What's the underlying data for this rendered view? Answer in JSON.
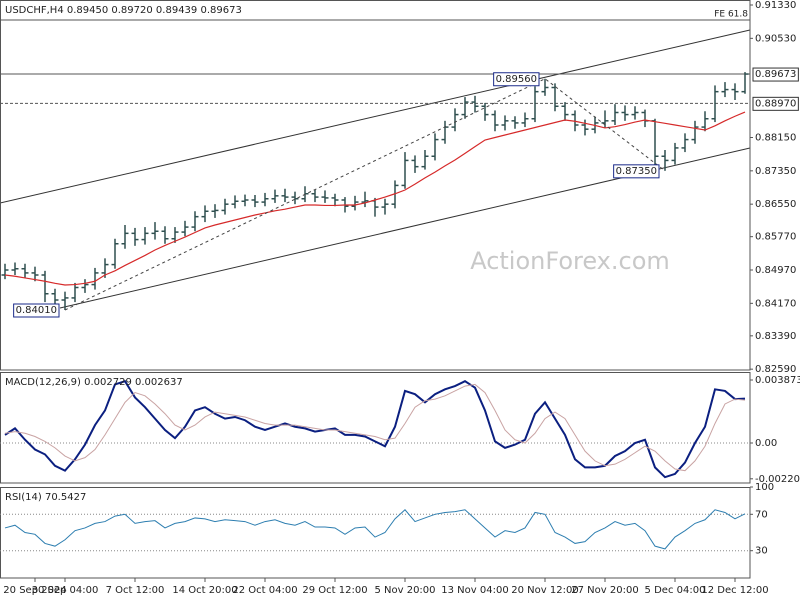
{
  "chart_data": [
    {
      "type": "ohlc",
      "title": "USDCHF,H4  0.89450 0.89720 0.89439 0.89673",
      "watermark": "ActionForex.com",
      "color": "#2f4f4f",
      "categories": [
        null,
        null,
        null,
        "20 Sep 2024",
        null,
        null,
        "30 Sep 04:00",
        null,
        null,
        null,
        null,
        null,
        null,
        "7 Oct 12:00",
        null,
        null,
        null,
        null,
        null,
        null,
        "14 Oct 20:00",
        null,
        null,
        null,
        null,
        null,
        "22 Oct 04:00",
        null,
        null,
        null,
        null,
        null,
        null,
        "29 Oct 12:00",
        null,
        null,
        null,
        null,
        null,
        null,
        "5 Nov 20:00",
        null,
        null,
        null,
        null,
        null,
        null,
        "13 Nov 04:00",
        null,
        null,
        null,
        null,
        null,
        null,
        "20 Nov 12:00",
        null,
        null,
        null,
        null,
        null,
        "27 Nov 20:00",
        null,
        null,
        null,
        null,
        null,
        null,
        "5 Dec 04:00",
        null,
        null,
        null,
        null,
        null,
        "12 Dec 12:00",
        null
      ],
      "open": [
        0.8485,
        0.8497,
        0.85,
        0.849,
        0.8485,
        0.844,
        0.8425,
        0.843,
        0.8455,
        0.8462,
        0.849,
        0.851,
        0.856,
        0.8585,
        0.857,
        0.8585,
        0.859,
        0.8572,
        0.8588,
        0.86,
        0.8625,
        0.8638,
        0.864,
        0.8655,
        0.8662,
        0.8665,
        0.866,
        0.8668,
        0.8675,
        0.8672,
        0.8668,
        0.868,
        0.8672,
        0.867,
        0.8665,
        0.865,
        0.866,
        0.8663,
        0.8648,
        0.8655,
        0.87,
        0.876,
        0.8745,
        0.877,
        0.881,
        0.884,
        0.887,
        0.89,
        0.889,
        0.887,
        0.8845,
        0.8855,
        0.885,
        0.886,
        0.8925,
        0.8935,
        0.889,
        0.887,
        0.8845,
        0.8835,
        0.885,
        0.8855,
        0.8875,
        0.887,
        0.8875,
        0.8855,
        0.877,
        0.876,
        0.879,
        0.881,
        0.884,
        0.886,
        0.8925,
        0.893,
        0.8925
      ],
      "high": [
        0.8512,
        0.8515,
        0.8512,
        0.8505,
        0.8495,
        0.8452,
        0.8445,
        0.8466,
        0.8475,
        0.8502,
        0.8525,
        0.8572,
        0.8605,
        0.8598,
        0.86,
        0.8612,
        0.8602,
        0.86,
        0.8615,
        0.8638,
        0.8652,
        0.8655,
        0.8668,
        0.8676,
        0.8678,
        0.8677,
        0.8682,
        0.869,
        0.8692,
        0.8685,
        0.8698,
        0.869,
        0.8688,
        0.868,
        0.8672,
        0.8675,
        0.8685,
        0.867,
        0.8668,
        0.8712,
        0.878,
        0.8772,
        0.8785,
        0.8825,
        0.8855,
        0.8885,
        0.8912,
        0.8915,
        0.8898,
        0.888,
        0.8868,
        0.8866,
        0.8875,
        0.8938,
        0.8956,
        0.8945,
        0.89,
        0.888,
        0.8858,
        0.8865,
        0.888,
        0.8895,
        0.8892,
        0.889,
        0.8882,
        0.886,
        0.8785,
        0.8802,
        0.8825,
        0.8855,
        0.8878,
        0.894,
        0.8948,
        0.8945,
        0.8972
      ],
      "low": [
        0.8475,
        0.8485,
        0.8478,
        0.847,
        0.842,
        0.8412,
        0.8401,
        0.842,
        0.8442,
        0.845,
        0.8478,
        0.85,
        0.8548,
        0.8555,
        0.8558,
        0.857,
        0.856,
        0.8562,
        0.8578,
        0.859,
        0.8612,
        0.8622,
        0.863,
        0.8645,
        0.865,
        0.8648,
        0.865,
        0.8658,
        0.866,
        0.8655,
        0.866,
        0.866,
        0.8658,
        0.865,
        0.8635,
        0.864,
        0.8648,
        0.8625,
        0.863,
        0.8645,
        0.8692,
        0.873,
        0.8738,
        0.876,
        0.88,
        0.883,
        0.886,
        0.8875,
        0.8855,
        0.883,
        0.8832,
        0.8836,
        0.884,
        0.8852,
        0.8915,
        0.8878,
        0.8855,
        0.883,
        0.882,
        0.8825,
        0.8838,
        0.8845,
        0.8855,
        0.8858,
        0.884,
        0.875,
        0.8735,
        0.875,
        0.878,
        0.88,
        0.883,
        0.8852,
        0.8912,
        0.8905,
        0.892
      ],
      "close": [
        0.8497,
        0.85,
        0.849,
        0.8485,
        0.844,
        0.8425,
        0.843,
        0.8455,
        0.8462,
        0.849,
        0.851,
        0.856,
        0.8585,
        0.857,
        0.8585,
        0.859,
        0.8572,
        0.8588,
        0.86,
        0.8625,
        0.8638,
        0.864,
        0.8655,
        0.8662,
        0.8665,
        0.866,
        0.8668,
        0.8675,
        0.8672,
        0.8668,
        0.868,
        0.8672,
        0.867,
        0.8665,
        0.865,
        0.866,
        0.8663,
        0.8648,
        0.8655,
        0.87,
        0.876,
        0.8745,
        0.877,
        0.881,
        0.884,
        0.887,
        0.89,
        0.889,
        0.887,
        0.8845,
        0.8855,
        0.885,
        0.886,
        0.8925,
        0.8935,
        0.889,
        0.887,
        0.8845,
        0.8835,
        0.885,
        0.8855,
        0.8875,
        0.887,
        0.8875,
        0.8855,
        0.877,
        0.876,
        0.879,
        0.881,
        0.884,
        0.886,
        0.8925,
        0.893,
        0.8925,
        0.89673
      ],
      "overlays": [
        {
          "color": "#d62a2a",
          "values": [
            0.8485,
            0.8482,
            0.8478,
            0.8474,
            0.847,
            0.8465,
            0.8461,
            0.8462,
            0.8465,
            0.847,
            0.8485,
            0.8495,
            0.8508,
            0.852,
            0.8532,
            0.8545,
            0.8556,
            0.8566,
            0.8576,
            0.8587,
            0.8598,
            0.8605,
            0.8611,
            0.8617,
            0.8623,
            0.8629,
            0.8634,
            0.8639,
            0.8643,
            0.8648,
            0.8653,
            0.8653,
            0.8652,
            0.8652,
            0.8653,
            0.8653,
            0.8658,
            0.8665,
            0.8672,
            0.868,
            0.8689,
            0.8703,
            0.8718,
            0.8732,
            0.8747,
            0.8761,
            0.8777,
            0.8793,
            0.8809,
            0.8815,
            0.8821,
            0.8827,
            0.8833,
            0.8839,
            0.8845,
            0.8851,
            0.8857,
            0.8854,
            0.8849,
            0.8844,
            0.8838,
            0.8841,
            0.8846,
            0.8852,
            0.8857,
            0.8853,
            0.8849,
            0.8845,
            0.8841,
            0.8837,
            0.8833,
            0.8843,
            0.8855,
            0.8866,
            0.8876
          ]
        }
      ],
      "ylim": [
        0.8257,
        0.9145
      ],
      "yticks": [
        {
          "value": 0.9133,
          "label": "0.91330"
        },
        {
          "value": 0.9053,
          "label": "0.90530"
        },
        {
          "value": 0.8815,
          "label": "0.88150"
        },
        {
          "value": 0.8735,
          "label": "0.87350"
        },
        {
          "value": 0.8655,
          "label": "0.86550"
        },
        {
          "value": 0.8577,
          "label": "0.85770"
        },
        {
          "value": 0.8497,
          "label": "0.84970"
        },
        {
          "value": 0.8417,
          "label": "0.84170"
        },
        {
          "value": 0.8339,
          "label": "0.83390"
        },
        {
          "value": 0.8259,
          "label": "0.82590"
        }
      ],
      "price_lines": [
        {
          "value": 0.89673,
          "label": "0.89673",
          "style": "solid"
        },
        {
          "value": 0.8897,
          "label": "0.88970",
          "style": "dashed"
        }
      ],
      "pivots": [
        {
          "value": 0.8401,
          "label": "0.84010"
        },
        {
          "value": 0.8956,
          "label": "0.89560"
        },
        {
          "value": 0.8735,
          "label": "0.87350"
        }
      ],
      "projection": {
        "value": 0.9097,
        "label": "FE 61.8"
      }
    },
    {
      "type": "line",
      "title": "MACD(12,26,9) 0.002729 0.002637",
      "grid": "zero",
      "series": [
        {
          "color": "#0b1f80",
          "width": 2,
          "values": [
            0.0005,
            0.0009,
            0.0002,
            -0.0004,
            -0.0007,
            -0.0014,
            -0.0017,
            -0.001,
            -0.0001,
            0.0011,
            0.002,
            0.0036,
            0.0038,
            0.0028,
            0.0022,
            0.0015,
            0.0008,
            0.0003,
            0.001,
            0.002,
            0.0022,
            0.0018,
            0.0015,
            0.0016,
            0.0014,
            0.001,
            0.0008,
            0.001,
            0.0012,
            0.001,
            0.0009,
            0.0007,
            0.0008,
            0.0009,
            0.0005,
            0.0005,
            0.0004,
            0.0001,
            -0.0002,
            0.001,
            0.0032,
            0.003,
            0.0025,
            0.003,
            0.0033,
            0.0035,
            0.0038,
            0.0034,
            0.002,
            0.0001,
            -0.0003,
            -0.0001,
            0.0002,
            0.0018,
            0.0025,
            0.0015,
            0.0005,
            -0.001,
            -0.0015,
            -0.0015,
            -0.0014,
            -0.0008,
            -0.0005,
            0.0,
            0.0002,
            -0.0015,
            -0.0021,
            -0.0019,
            -0.0012,
            0.0,
            0.001,
            0.0033,
            0.0032,
            0.0027,
            0.002729
          ]
        },
        {
          "color": "#c9a3a3",
          "width": 1,
          "values": [
            0.0006,
            0.0007,
            0.0006,
            0.0004,
            0.0001,
            -0.0003,
            -0.0008,
            -0.0011,
            -0.0009,
            -0.0004,
            0.0005,
            0.0015,
            0.0025,
            0.0031,
            0.0029,
            0.0024,
            0.0018,
            0.0011,
            0.0008,
            0.0011,
            0.0016,
            0.0019,
            0.0018,
            0.0017,
            0.0016,
            0.0014,
            0.0012,
            0.0011,
            0.0011,
            0.0011,
            0.001,
            0.0009,
            0.0008,
            0.0008,
            0.0007,
            0.0006,
            0.0005,
            0.0004,
            0.0002,
            0.0003,
            0.0012,
            0.0022,
            0.0026,
            0.0027,
            0.0029,
            0.0032,
            0.0035,
            0.0036,
            0.0031,
            0.002,
            0.0008,
            0.0002,
            0.0,
            0.0006,
            0.0015,
            0.0019,
            0.0015,
            0.0005,
            -0.0005,
            -0.0011,
            -0.0014,
            -0.0013,
            -0.001,
            -0.0006,
            -0.0002,
            -0.0005,
            -0.0011,
            -0.0016,
            -0.0017,
            -0.0011,
            -0.0002,
            0.0012,
            0.0024,
            0.0027,
            0.002637
          ]
        }
      ],
      "ylim": [
        -0.002459,
        0.004365
      ],
      "yticks": [
        0.003873,
        {
          "value": 0,
          "label": "0.00"
        },
        -0.002201
      ]
    },
    {
      "type": "line",
      "title": "RSI(14) 70.5427",
      "grid": "inner",
      "series": [
        {
          "color": "#2d7eb0",
          "width": 1,
          "values": [
            55,
            58,
            50,
            48,
            38,
            35,
            42,
            52,
            55,
            60,
            62,
            68,
            70,
            60,
            62,
            63,
            55,
            60,
            62,
            66,
            65,
            62,
            64,
            63,
            62,
            58,
            62,
            64,
            60,
            58,
            62,
            56,
            56,
            55,
            48,
            55,
            56,
            45,
            50,
            65,
            75,
            62,
            66,
            70,
            72,
            73,
            75,
            65,
            55,
            45,
            52,
            50,
            55,
            72,
            70,
            50,
            45,
            38,
            40,
            50,
            55,
            62,
            58,
            60,
            52,
            35,
            32,
            45,
            52,
            60,
            64,
            75,
            72,
            65,
            70.5427
          ]
        }
      ],
      "ylim": [
        0,
        100
      ],
      "yticks": [
        100,
        70,
        30
      ]
    }
  ]
}
